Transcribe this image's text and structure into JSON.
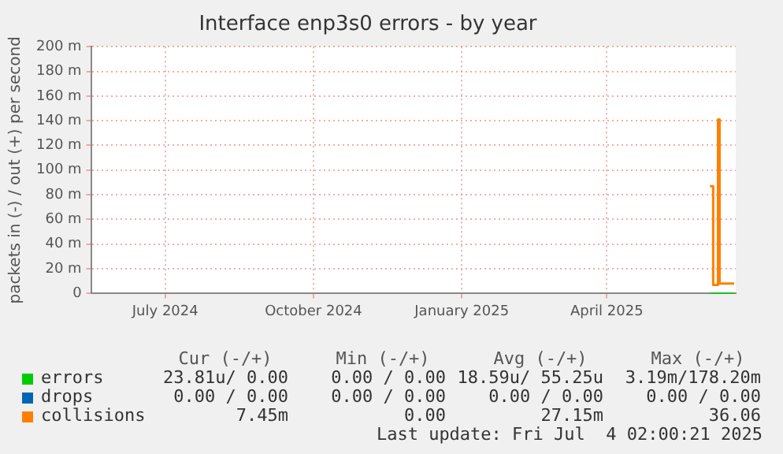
{
  "chart_data": {
    "type": "step",
    "title": "Interface enp3s0 errors - by year",
    "ylabel": "packets in (-) / out (+) per second",
    "xlim": [
      "2024-05-30",
      "2025-07-04"
    ],
    "xticks": [
      {
        "value": "2024-07-15",
        "label": "July 2024"
      },
      {
        "value": "2024-10-15",
        "label": "October 2024"
      },
      {
        "value": "2025-01-15",
        "label": "January 2025"
      },
      {
        "value": "2025-04-15",
        "label": "April 2025"
      }
    ],
    "ylim": [
      0,
      200
    ],
    "yticks": [
      0,
      {
        "value": 20,
        "label": "20 m"
      },
      {
        "value": 40,
        "label": "40 m"
      },
      {
        "value": 60,
        "label": "60 m"
      },
      {
        "value": 80,
        "label": "80 m"
      },
      {
        "value": 100,
        "label": "100 m"
      },
      {
        "value": 120,
        "label": "120 m"
      },
      {
        "value": 140,
        "label": "140 m"
      },
      {
        "value": 160,
        "label": "160 m"
      },
      {
        "value": 180,
        "label": "180 m"
      },
      {
        "value": 200,
        "label": "200 m"
      }
    ],
    "grid": true,
    "legend": "bottom left",
    "series": [
      {
        "name": "errors",
        "color": "#00cc00",
        "x": [
          "2025-06-18",
          "2025-06-20",
          "2025-06-23",
          "2025-06-24",
          "2025-07-03"
        ],
        "values": [
          0,
          0,
          0,
          0,
          0
        ]
      },
      {
        "name": "drops",
        "color": "#0066b3"
      },
      {
        "name": "collisions",
        "color": "#ff8000",
        "x": [
          "2025-06-18",
          "2025-06-19",
          "2025-06-20",
          "2025-06-22",
          "2025-06-23",
          "2025-06-24",
          "2025-07-03"
        ],
        "values": [
          87,
          87,
          7,
          7,
          141,
          8,
          8
        ]
      }
    ],
    "annotations": [
      "Cur (-/+)",
      "Min (-/+)",
      "Avg (-/+)",
      "Max (-/+)",
      "23.81u/ 0.00",
      "0.00 / 0.00",
      "18.59u/ 55.25u",
      "3.19m/178.20m",
      "0.00 / 0.00",
      "0.00 / 0.00",
      "0.00 / 0.00",
      "0.00 / 0.00",
      "7.45m",
      "0.00",
      "27.15m",
      "36.06",
      "Last update: Fri Jul  4 02:00:21 2025"
    ]
  }
}
